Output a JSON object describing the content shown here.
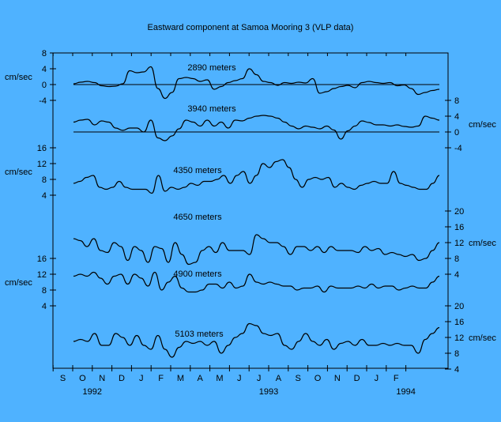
{
  "chart_data": {
    "type": "line",
    "title": "Eastward component at Samoa Mooring 3 (VLP data)",
    "unit_label": "cm/sec",
    "x_tick_labels": [
      "S",
      "O",
      "N",
      "D",
      "J",
      "F",
      "M",
      "A",
      "M",
      "J",
      "J",
      "A",
      "S",
      "O",
      "N",
      "D",
      "J",
      "F"
    ],
    "year_labels": [
      {
        "label": "1992",
        "month_index": 1.5
      },
      {
        "label": "1993",
        "month_index": 10.5
      },
      {
        "label": "1994",
        "month_index": 17.5
      }
    ],
    "x_range_months": [
      0,
      18
    ],
    "axes": [
      {
        "side": "left",
        "ticks": [
          8,
          4,
          0,
          -4
        ],
        "series": 0
      },
      {
        "side": "right",
        "ticks": [
          8,
          4,
          0,
          -4
        ],
        "series": 1
      },
      {
        "side": "left",
        "ticks": [
          16,
          12,
          8,
          4
        ],
        "series": 2
      },
      {
        "side": "right",
        "ticks": [
          20,
          16,
          12,
          8,
          4
        ],
        "series": 3
      },
      {
        "side": "left",
        "ticks": [
          16,
          12,
          8,
          4
        ],
        "series": 4
      },
      {
        "side": "right",
        "ticks": [
          20,
          16,
          12,
          8,
          4
        ],
        "series": 5
      }
    ],
    "series": [
      {
        "name": "2890 meters",
        "zero_line": true,
        "values": [
          0.2,
          0.6,
          0.8,
          0.5,
          -0.3,
          -0.5,
          -0.4,
          0.2,
          3.5,
          3,
          3.2,
          4.5,
          -1,
          -3.5,
          -2,
          1.5,
          1.8,
          1.5,
          0.8,
          1.2,
          -1.2,
          -0.5,
          0.5,
          1,
          1.5,
          4,
          2.5,
          0.8,
          0.5,
          -0.2,
          0.5,
          0.3,
          0.6,
          0.4,
          1.5,
          -2.2,
          -1.8,
          -1,
          -0.5,
          -0.2,
          -0.8,
          0.5,
          0.8,
          0.5,
          0.3,
          0.5,
          -0.3,
          -0.1,
          -1,
          -2.5,
          -2,
          -1.5,
          -1.2
        ]
      },
      {
        "name": "3940 meters",
        "zero_line": true,
        "values": [
          2.5,
          3,
          3.2,
          1.8,
          2.8,
          2.5,
          1,
          0.4,
          1,
          1,
          0,
          3,
          -1.5,
          -2.2,
          -1,
          0.8,
          3,
          2.5,
          1.5,
          3,
          1.5,
          2.5,
          1,
          3,
          2.8,
          3.5,
          4,
          4.2,
          4,
          3.5,
          2.5,
          1.5,
          0.8,
          1.5,
          1.2,
          0.8,
          1.5,
          0.5,
          -1.8,
          0.3,
          1.5,
          2.8,
          2.4,
          1.8,
          1.8,
          1.5,
          1.8,
          1.4,
          1.2,
          1.5,
          4,
          3.5,
          3
        ]
      },
      {
        "name": "4350 meters",
        "values": [
          7,
          7.5,
          8.5,
          9,
          6,
          5.5,
          6,
          7.5,
          6,
          5.5,
          5.5,
          5.5,
          4.5,
          9,
          5,
          6,
          5.5,
          6,
          7,
          6.5,
          7.5,
          7.5,
          8,
          9,
          7,
          9,
          10,
          7,
          9,
          12,
          11,
          12.5,
          13,
          11,
          8,
          6,
          8,
          8.5,
          8,
          8.5,
          6,
          7,
          6,
          5.5,
          6.5,
          7,
          7.5,
          7,
          7,
          10,
          7,
          6.5,
          6,
          5.5,
          5.5,
          7,
          9
        ]
      },
      {
        "name": "4650 meters",
        "values": [
          13,
          12.5,
          11,
          13,
          10,
          9.5,
          12,
          11,
          7.5,
          11,
          10,
          7,
          11,
          10.5,
          7,
          12,
          9,
          6.5,
          7,
          10,
          11,
          9.5,
          12,
          10,
          10,
          10,
          9,
          14,
          13,
          12,
          12,
          11,
          9,
          11,
          11,
          10,
          11,
          9.5,
          11,
          10,
          10,
          10,
          9.5,
          11,
          10,
          10.5,
          9,
          9.5,
          9,
          8.5,
          9,
          7.5,
          8,
          10,
          12
        ]
      },
      {
        "name": "4900 meters",
        "values": [
          11.5,
          12,
          11.5,
          12.5,
          11,
          9.5,
          11.5,
          12,
          9.5,
          12,
          11,
          9,
          12.5,
          8,
          10,
          11.5,
          8.5,
          7.5,
          7.5,
          8,
          9.5,
          9.5,
          8.5,
          10,
          8.5,
          9,
          12,
          10,
          9.5,
          10,
          9.5,
          9,
          9,
          8,
          8.5,
          8.5,
          9,
          7.5,
          9,
          8.5,
          8.5,
          8.5,
          9,
          8.5,
          9.5,
          8.5,
          9,
          9,
          8,
          8.5,
          9,
          8.5,
          8.5,
          10,
          11.5
        ]
      },
      {
        "name": "5103 meters",
        "values": [
          11,
          11.5,
          11,
          13,
          10,
          10,
          13,
          12,
          10,
          12.5,
          10,
          9,
          12.5,
          9,
          7,
          9.5,
          11,
          10.5,
          11,
          10,
          11,
          8,
          10,
          12,
          13,
          15.5,
          15,
          13,
          12.5,
          13,
          10,
          9,
          11,
          13,
          11,
          10,
          11.5,
          9,
          10.5,
          11,
          10,
          11.5,
          10,
          10,
          10.5,
          10,
          10.5,
          10,
          10,
          8,
          11.5,
          13,
          14.5
        ]
      }
    ]
  }
}
